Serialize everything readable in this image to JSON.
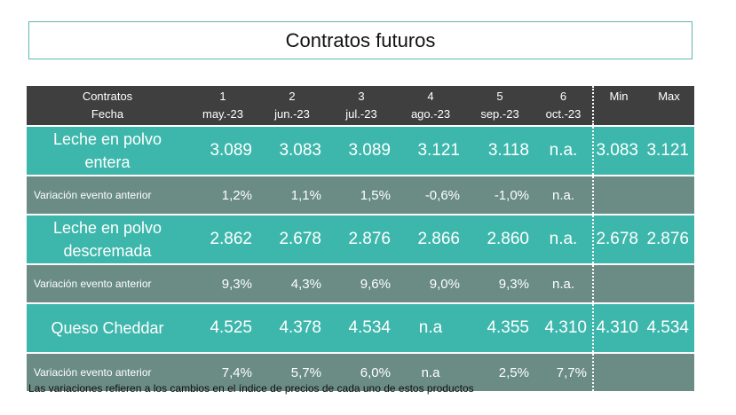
{
  "title": "Contratos futuros",
  "header": {
    "row1_label": "Contratos",
    "row2_label": "Fecha",
    "events": [
      {
        "num": "1",
        "date": "may.-23"
      },
      {
        "num": "2",
        "date": "jun.-23"
      },
      {
        "num": "3",
        "date": "jul.-23"
      },
      {
        "num": "4",
        "date": "ago.-23"
      },
      {
        "num": "5",
        "date": "sep.-23"
      },
      {
        "num": "6",
        "date": "oct.-23"
      }
    ],
    "min_label": "Min",
    "max_label": "Max"
  },
  "rows": [
    {
      "product_line1": "Leche en polvo",
      "product_line2": "entera",
      "values": [
        "3.089",
        "3.083",
        "3.089",
        "3.121",
        "3.118",
        "n.a."
      ],
      "min": "3.083",
      "max": "3.121",
      "variation_label": "Variación evento anterior",
      "variations": [
        "1,2%",
        "1,1%",
        "1,5%",
        "-0,6%",
        "-1,0%",
        "n.a."
      ]
    },
    {
      "product_line1": "Leche en polvo",
      "product_line2": "descremada",
      "values": [
        "2.862",
        "2.678",
        "2.876",
        "2.866",
        "2.860",
        "n.a."
      ],
      "min": "2.678",
      "max": "2.876",
      "variation_label": "Variación evento anterior",
      "variations": [
        "9,3%",
        "4,3%",
        "9,6%",
        "9,0%",
        "9,3%",
        "n.a."
      ]
    },
    {
      "product_line1": "Queso Cheddar",
      "product_line2": "",
      "values": [
        "4.525",
        "4.378",
        "4.534",
        "n.a",
        "4.355",
        "4.310"
      ],
      "min": "4.310",
      "max": "4.534",
      "variation_label": "Variación evento anterior",
      "variations": [
        "7,4%",
        "5,7%",
        "6,0%",
        "n.a",
        "2,5%",
        "7,7%"
      ]
    }
  ],
  "footnote": "Las variaciones refieren a los cambios en el índice de precios de cada uno de estos productos",
  "colors": {
    "header_bg": "#3f3f3f",
    "main_row_bg": "#3db7ac",
    "variation_row_bg": "#6a8c85",
    "title_border": "#5fb9b0"
  }
}
